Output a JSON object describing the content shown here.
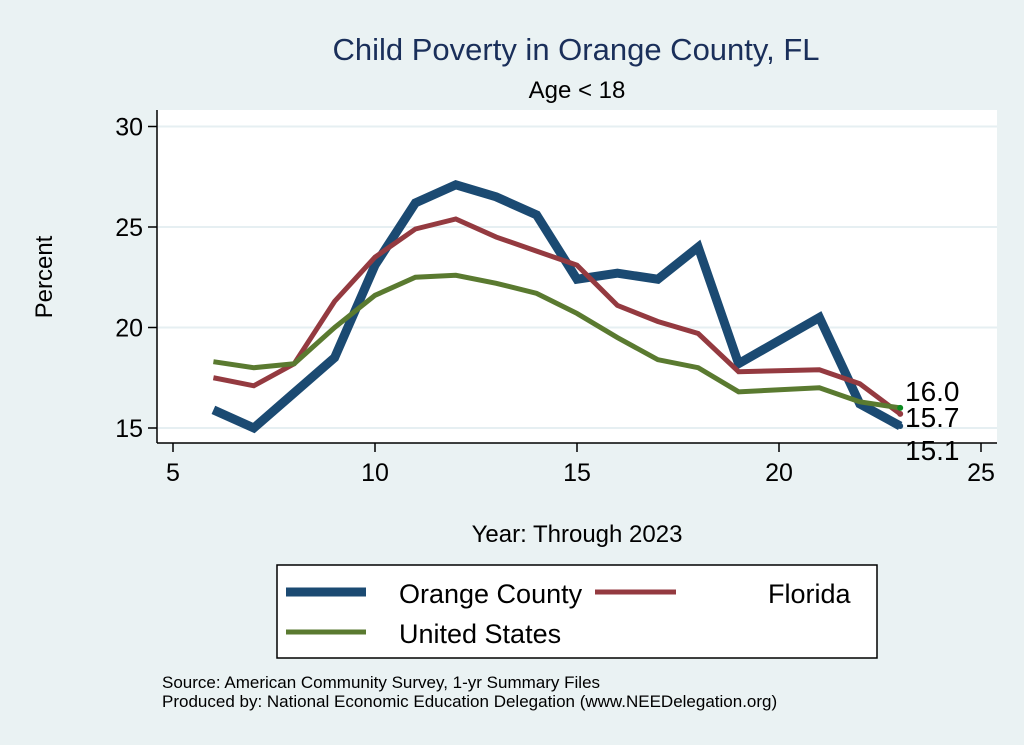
{
  "chart_data": {
    "type": "line",
    "title": "Child Poverty in Orange County, FL",
    "subtitle": "Age < 18",
    "xlabel": "Year: Through 2023",
    "ylabel": "Percent",
    "xlim": [
      5,
      25
    ],
    "ylim": [
      15,
      30
    ],
    "xticks": [
      5,
      10,
      15,
      20,
      25
    ],
    "yticks": [
      15,
      20,
      25,
      30
    ],
    "grid": "horizontal",
    "legend_position": "bottom",
    "x": [
      6,
      7,
      8,
      9,
      10,
      11,
      12,
      13,
      14,
      15,
      16,
      17,
      18,
      19,
      21,
      22,
      23
    ],
    "series": [
      {
        "name": "Orange County",
        "color": "#1b4a72",
        "values": [
          15.9,
          15.0,
          16.75,
          18.5,
          23.1,
          26.2,
          27.1,
          26.5,
          25.6,
          22.4,
          22.7,
          22.4,
          24.0,
          18.2,
          20.5,
          16.2,
          15.1
        ],
        "end_label": "15.1"
      },
      {
        "name": "Florida",
        "color": "#943a40",
        "values": [
          17.5,
          17.1,
          18.2,
          21.3,
          23.5,
          24.9,
          25.4,
          24.5,
          23.8,
          23.1,
          21.1,
          20.3,
          19.7,
          17.8,
          17.9,
          17.2,
          15.7
        ],
        "end_label": "15.7"
      },
      {
        "name": "United States",
        "color": "#5a7a30",
        "values": [
          18.3,
          18.0,
          18.2,
          20.0,
          21.6,
          22.5,
          22.6,
          22.2,
          21.7,
          20.7,
          19.5,
          18.4,
          18.0,
          16.8,
          17.0,
          16.3,
          16.0
        ],
        "end_label": "16.0"
      }
    ],
    "end_marker_color": "#0b8a1f",
    "notes": [
      "Source: American Community Survey, 1-yr Summary Files",
      "Produced by: National Economic Education Delegation (www.NEEDelegation.org)"
    ]
  }
}
